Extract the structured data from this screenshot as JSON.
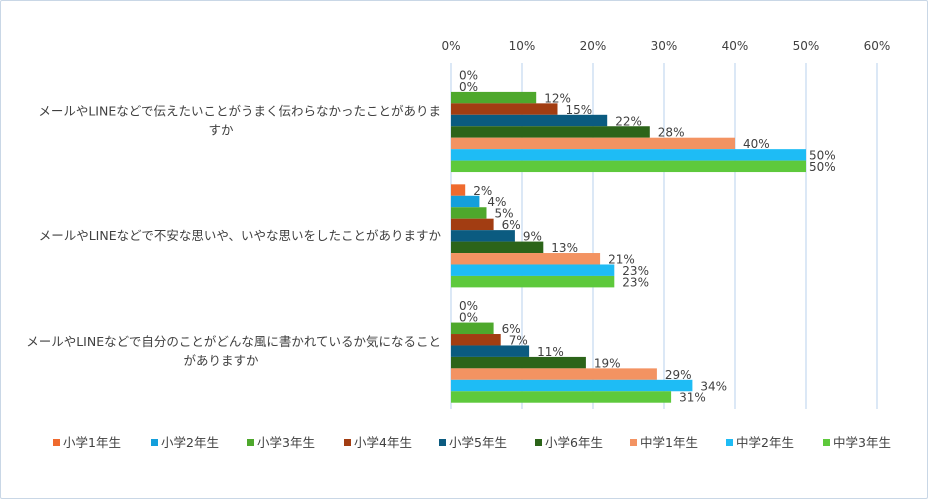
{
  "chart_data": {
    "type": "bar",
    "orientation": "horizontal",
    "categories": [
      "メールやLINEなどで伝えたいことがうまく伝わらなかったことがありますか",
      "メールやLINEなどで不安な思いや、いやな思いをしたことがありますか",
      "メールやLINEなどで自分のことがどんな風に書かれているか気になることがありますか"
    ],
    "category_lines": [
      [
        "メールやLINEなどで伝えたいことがうまく伝わらなかったことがありま",
        "すか"
      ],
      [
        "メールやLINEなどで不安な思いや、いやな思いをしたことがありますか"
      ],
      [
        "メールやLINEなどで自分のことがどんな風に書かれているか気になること",
        "がありますか"
      ]
    ],
    "series": [
      {
        "name": "小学1年生",
        "color": "#ef6a2e",
        "values": [
          0,
          2,
          0
        ]
      },
      {
        "name": "小学2年生",
        "color": "#149fdb",
        "values": [
          0,
          4,
          0
        ]
      },
      {
        "name": "小学3年生",
        "color": "#4ea82c",
        "values": [
          12,
          5,
          6
        ]
      },
      {
        "name": "小学4年生",
        "color": "#a23d12",
        "values": [
          15,
          6,
          7
        ]
      },
      {
        "name": "小学5年生",
        "color": "#0b5b80",
        "values": [
          22,
          9,
          11
        ]
      },
      {
        "name": "小学6年生",
        "color": "#2c6419",
        "values": [
          28,
          13,
          19
        ]
      },
      {
        "name": "中学1年生",
        "color": "#f39362",
        "values": [
          40,
          21,
          29
        ]
      },
      {
        "name": "中学2年生",
        "color": "#1ebcf5",
        "values": [
          50,
          23,
          34
        ]
      },
      {
        "name": "中学3年生",
        "color": "#5ec93c",
        "values": [
          50,
          23,
          31
        ]
      }
    ],
    "xlim": [
      0,
      60
    ],
    "xticks": [
      "0%",
      "10%",
      "20%",
      "30%",
      "40%",
      "50%",
      "60%"
    ],
    "value_suffix": "%",
    "grid": true,
    "legend": "bottom"
  }
}
